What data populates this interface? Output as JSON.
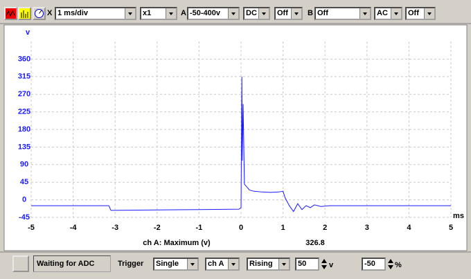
{
  "toolbar": {
    "x_label": "X",
    "timebase": "1 ms/div",
    "zoom": "x1",
    "channel_a_label": "A",
    "channel_a_range": "-50-400v",
    "channel_a_coupling": "DC",
    "channel_a_option": "Off",
    "channel_b_label": "B",
    "channel_b_range": "Off",
    "channel_b_coupling": "AC",
    "channel_b_option": "Off"
  },
  "chart_data": {
    "type": "line",
    "y_axis_label": "v",
    "x_axis_label": "ms",
    "x": [
      -5,
      -3.15,
      -3.1,
      -2,
      -1,
      -0.05,
      0,
      0.02,
      0.03,
      0.05,
      0.08,
      0.12,
      0.2,
      0.3,
      0.5,
      0.7,
      0.9,
      1.0,
      1.05,
      1.15,
      1.25,
      1.35,
      1.45,
      1.55,
      1.65,
      1.75,
      1.9,
      2.1,
      3,
      4,
      5
    ],
    "values": [
      -15,
      -15,
      -27,
      -26,
      -25,
      -24,
      -20,
      315,
      100,
      245,
      40,
      35,
      25,
      22,
      20,
      19,
      20,
      22,
      5,
      -15,
      -30,
      -10,
      -25,
      -15,
      -20,
      -13,
      -17,
      -15,
      -15,
      -15,
      -15
    ],
    "color": "#1a1aff",
    "xlim": [
      -5,
      5
    ],
    "xticks": [
      -5,
      -4,
      -3,
      -2,
      -1,
      0,
      1,
      2,
      3,
      4,
      5
    ],
    "ylim": [
      -45,
      405
    ],
    "yticks": [
      -45,
      0,
      45,
      90,
      135,
      180,
      225,
      270,
      315,
      360
    ],
    "grid": true
  },
  "measurement": {
    "label": "ch A: Maximum (v)",
    "value": 326.8
  },
  "status": {
    "message": "Waiting for ADC",
    "trigger_label": "Trigger",
    "trigger_mode": "Single",
    "trigger_channel": "ch A",
    "trigger_edge": "Rising",
    "trigger_level": 50,
    "trigger_level_unit": "v",
    "trigger_delay": -50,
    "trigger_delay_unit": "%"
  }
}
